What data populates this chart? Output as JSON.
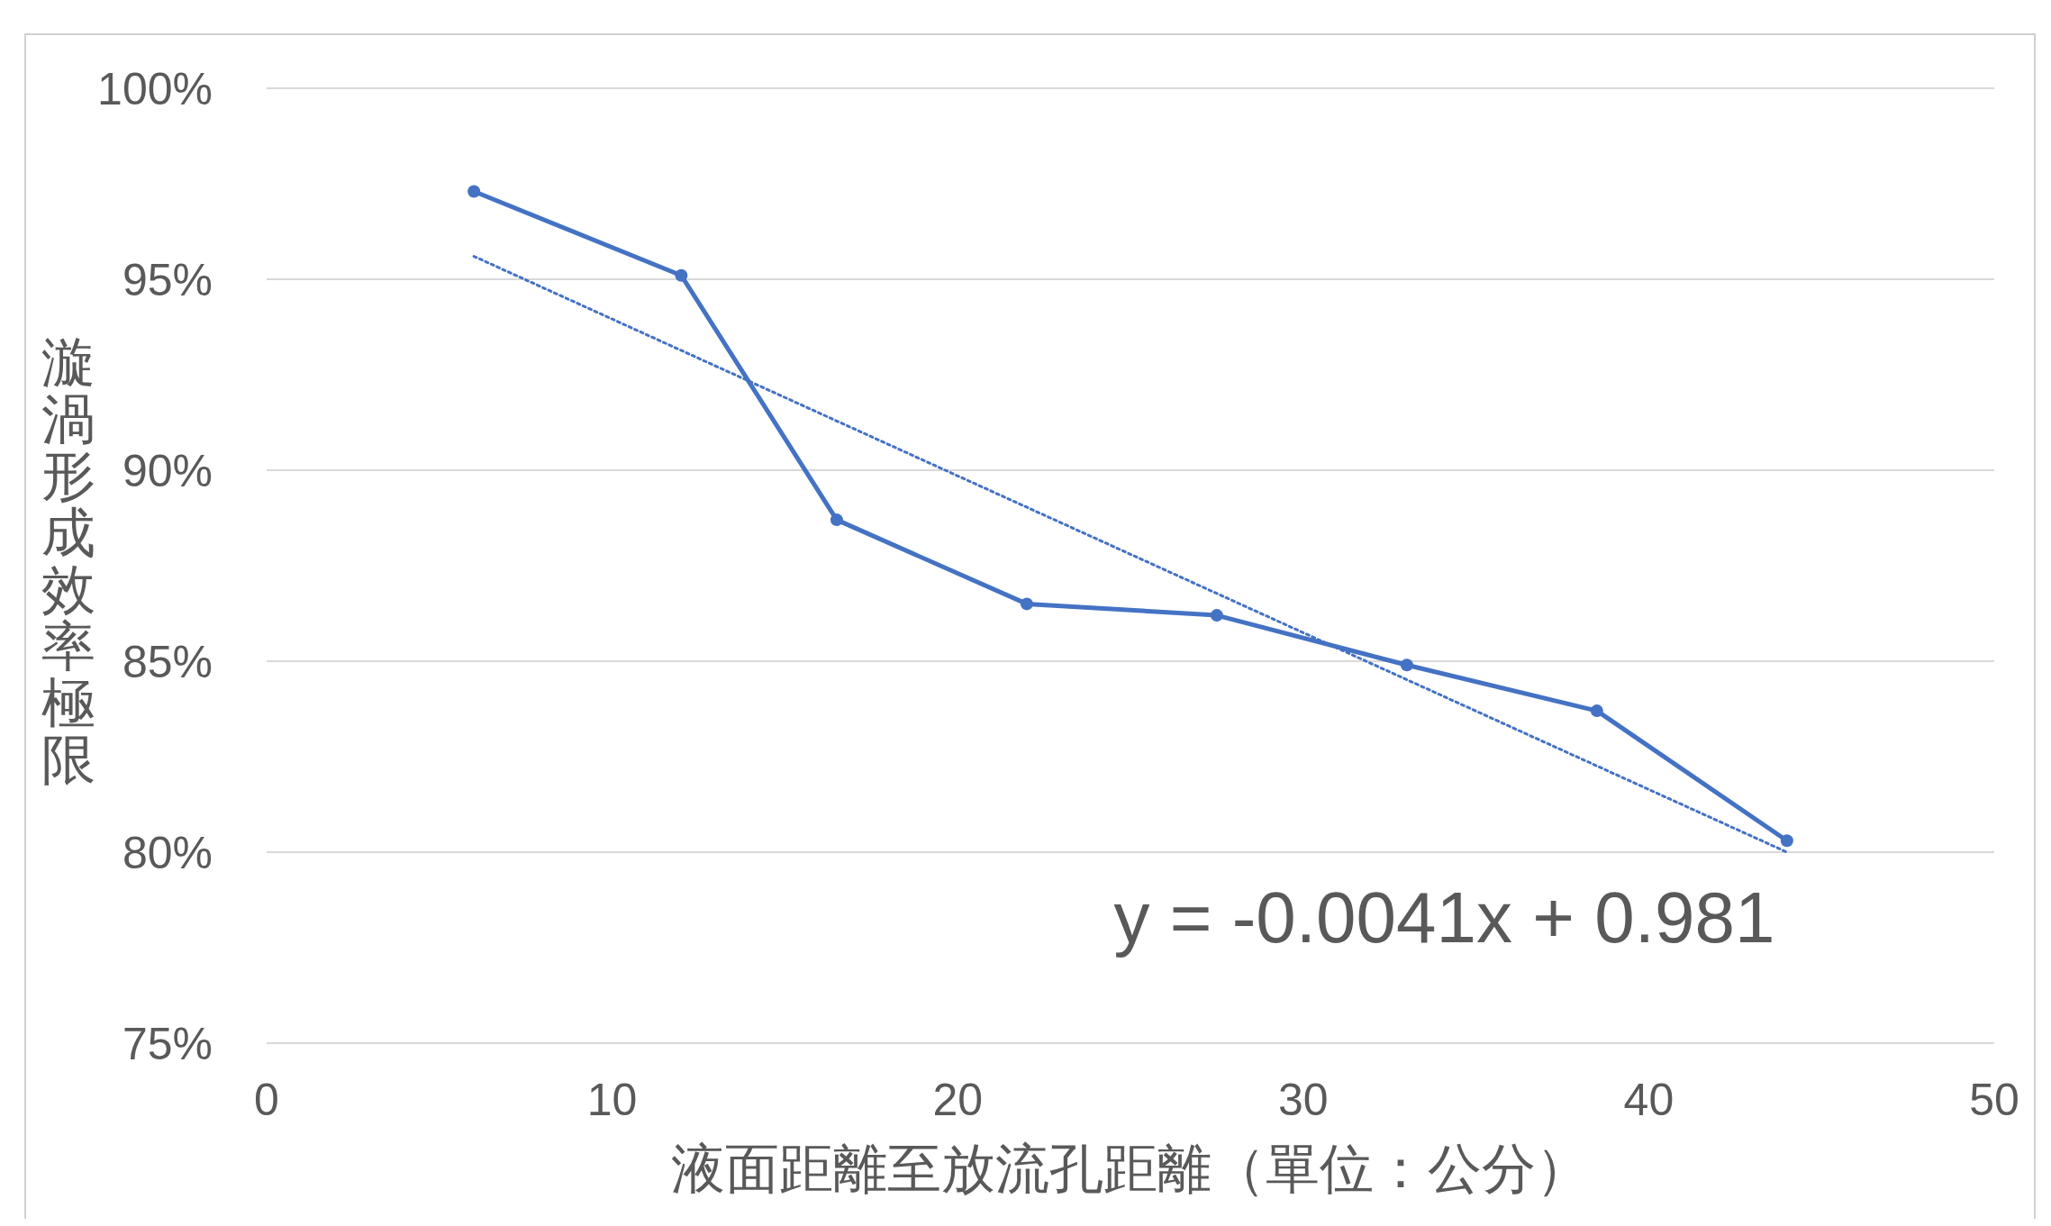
{
  "chart_data": {
    "type": "line",
    "xlabel": "液面距離至放流孔距離（單位：公分）",
    "ylabel": "漩渦形成效率極限",
    "xlim": [
      0,
      50
    ],
    "xticks": [
      0,
      10,
      20,
      30,
      40,
      50
    ],
    "ylim": [
      75,
      100
    ],
    "yticks": [
      {
        "value": 75,
        "label": "75%"
      },
      {
        "value": 80,
        "label": "80%"
      },
      {
        "value": 85,
        "label": "85%"
      },
      {
        "value": 90,
        "label": "90%"
      },
      {
        "value": 95,
        "label": "95%"
      },
      {
        "value": 100,
        "label": "100%"
      }
    ],
    "grid": "y",
    "marker": "circle",
    "line_style": "solid",
    "series": [
      {
        "color": "#4472c4",
        "x": [
          6,
          12,
          16.5,
          22,
          27.5,
          33,
          38.5,
          44
        ],
        "values": [
          97.3,
          95.1,
          88.7,
          86.5,
          86.2,
          84.9,
          83.7,
          80.3
        ]
      },
      {
        "type": "line",
        "color": "#4472c4",
        "x": [
          6,
          44
        ],
        "values": [
          95.6,
          80.0
        ],
        "marker": "none",
        "line_style": "dotted"
      }
    ],
    "annotations": [
      "y = -0.0041x + 0.981"
    ]
  }
}
